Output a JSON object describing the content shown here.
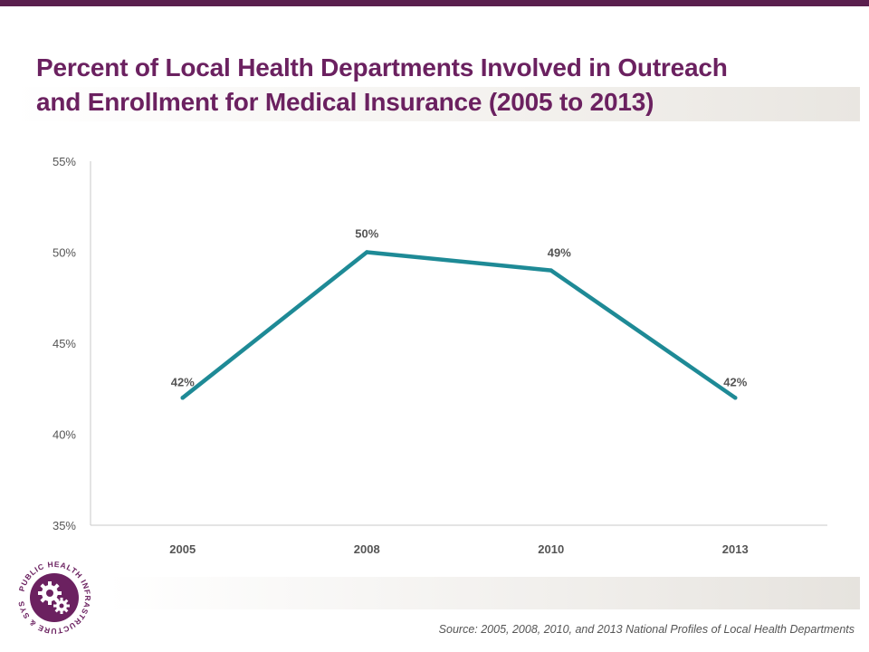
{
  "slide": {
    "title_line1": "Percent of Local Health Departments Involved in Outreach",
    "title_line2": "and Enrollment for Medical Insurance (2005 to 2013)",
    "source": "Source: 2005, 2008, 2010, and 2013 National Profiles of Local Health Departments"
  },
  "logo": {
    "text": "PUBLIC HEALTH INFRASTRUCTURE & SYSTEMS",
    "icon": "gears-icon"
  },
  "colors": {
    "brand_purple": "#6b2160",
    "top_bar": "#5a1f4e",
    "series_line": "#1e8a96"
  },
  "chart_data": {
    "type": "line",
    "categories": [
      "2005",
      "2008",
      "2010",
      "2013"
    ],
    "series": [
      {
        "values": [
          42,
          50,
          49,
          42
        ]
      }
    ],
    "data_labels": [
      "42%",
      "50%",
      "49%",
      "42%"
    ],
    "y_ticks": [
      35,
      40,
      45,
      50,
      55
    ],
    "y_tick_labels": [
      "35%",
      "40%",
      "45%",
      "50%",
      "55%"
    ],
    "ylim": [
      35,
      55
    ],
    "grid": false,
    "legend": "none",
    "xlabel": "",
    "ylabel": ""
  }
}
